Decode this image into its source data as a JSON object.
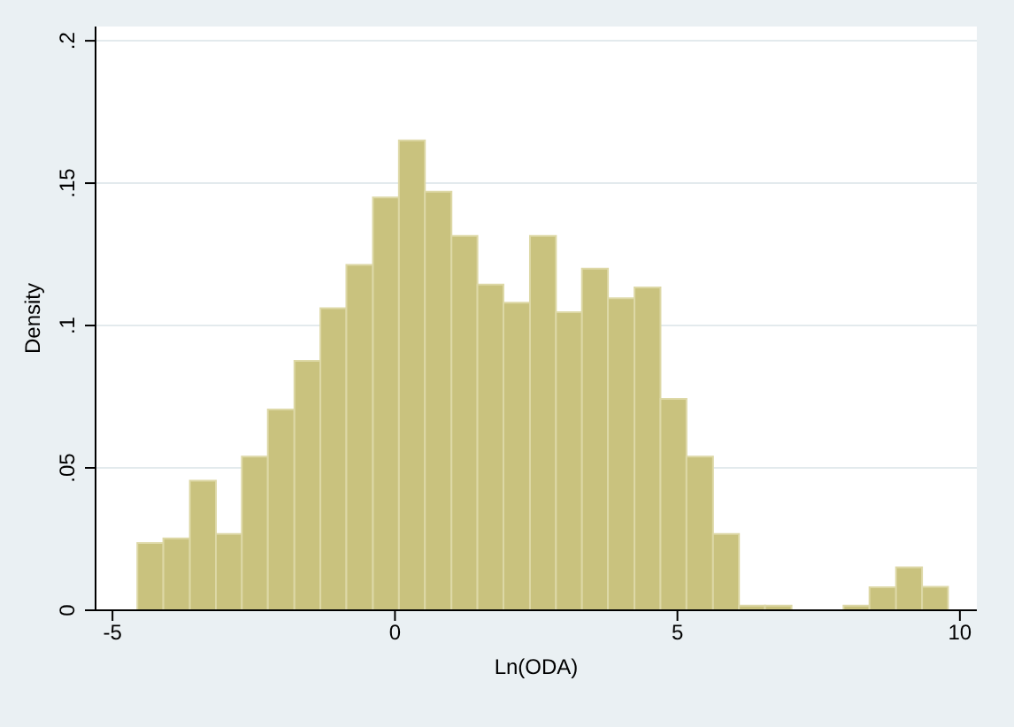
{
  "chart_data": {
    "type": "histogram",
    "xlabel": "Ln(ODA)",
    "ylabel": "Density",
    "color": "#c9c27e",
    "bins": [
      -4.56,
      -4.1,
      -3.63,
      -3.17,
      -2.71,
      -2.25,
      -1.78,
      -1.32,
      -0.86,
      -0.39,
      0.07,
      0.53,
      1.0,
      1.46,
      1.92,
      2.39,
      2.85,
      3.31,
      3.77,
      4.24,
      4.7,
      5.16,
      5.63,
      6.09,
      6.55,
      7.02,
      7.94,
      8.4,
      8.87,
      9.33,
      9.79
    ],
    "values": [
      0.0236,
      0.0252,
      0.0455,
      0.0268,
      0.054,
      0.0705,
      0.0876,
      0.1061,
      0.1213,
      0.145,
      0.165,
      0.147,
      0.1315,
      0.1144,
      0.108,
      0.1315,
      0.1047,
      0.12,
      0.1096,
      0.1134,
      0.0742,
      0.054,
      0.0268,
      0.0016,
      0.0016,
      0,
      0.0016,
      0.0081,
      0.0151,
      0.0082
    ],
    "xlim": [
      -5.3,
      10.3
    ],
    "xticks": [
      -5,
      0,
      5,
      10
    ],
    "ylim": [
      0,
      0.205
    ],
    "yticks": [
      0,
      {
        "value": 0.05,
        "label": ".05"
      },
      {
        "value": 0.1,
        "label": ".1"
      },
      {
        "value": 0.15,
        "label": ".15"
      },
      {
        "value": 0.2,
        "label": ".2"
      }
    ],
    "grid": "y"
  }
}
